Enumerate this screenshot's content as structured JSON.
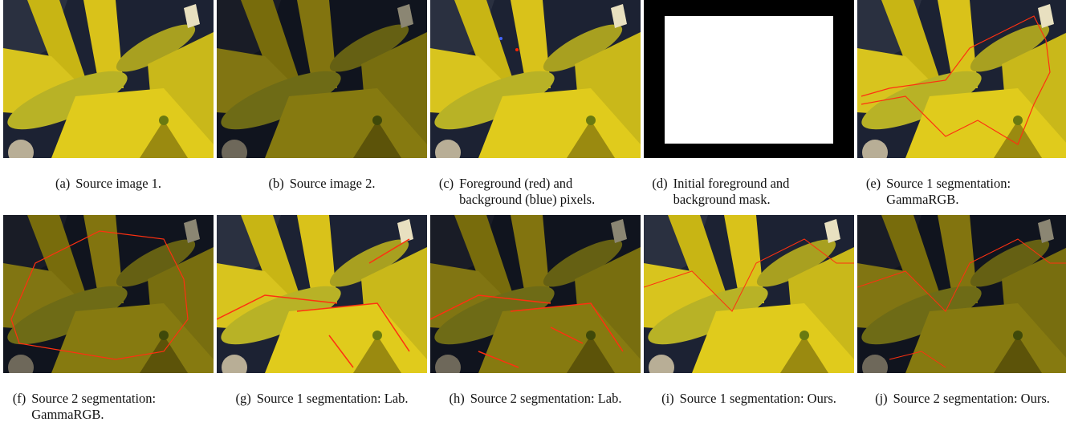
{
  "figures": [
    {
      "label": "(a)",
      "caption": "Source image 1."
    },
    {
      "label": "(b)",
      "caption": "Source image 2."
    },
    {
      "label": "(c)",
      "caption": "Foreground (red) and background (blue) pixels."
    },
    {
      "label": "(d)",
      "caption": "Initial foreground and background mask."
    },
    {
      "label": "(e)",
      "caption": "Source 1 segmentation: GammaRGB."
    },
    {
      "label": "(f)",
      "caption": "Source 2 segmentation: GammaRGB."
    },
    {
      "label": "(g)",
      "caption": "Source 1 segmentation: Lab."
    },
    {
      "label": "(h)",
      "caption": "Source 2 segmentation: Lab."
    },
    {
      "label": "(i)",
      "caption": "Source 1 segmentation: Ours."
    },
    {
      "label": "(j)",
      "caption": "Source 2 segmentation: Ours."
    }
  ]
}
